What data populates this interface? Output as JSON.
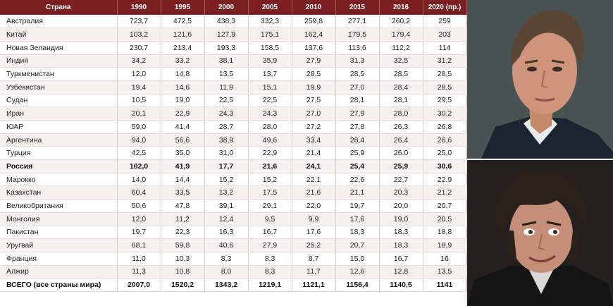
{
  "table": {
    "headers": [
      "Страна",
      "1990",
      "1995",
      "2000",
      "2005",
      "2010",
      "2015",
      "2016",
      "2020 (пр.)"
    ],
    "rows": [
      {
        "cells": [
          "Австралия",
          "723,7",
          "472,5",
          "438,3",
          "332,3",
          "259,8",
          "277,1",
          "260,2",
          "259"
        ]
      },
      {
        "cells": [
          "Китай",
          "103,2",
          "121,6",
          "127,9",
          "175,1",
          "162,4",
          "179,5",
          "179,4",
          "203"
        ]
      },
      {
        "cells": [
          "Новая Зеландия",
          "230,7",
          "213,4",
          "193,3",
          "158,5",
          "137,6",
          "113,6",
          "112,2",
          "114"
        ]
      },
      {
        "cells": [
          "Индия",
          "34,2",
          "33,2",
          "38,1",
          "35,9",
          "27,9",
          "31,3",
          "32,5",
          "31,2"
        ]
      },
      {
        "cells": [
          "Туркменистан",
          "12,0",
          "14,8",
          "13,5",
          "13,7",
          "28,5",
          "28,5",
          "28,5",
          "28,5"
        ]
      },
      {
        "cells": [
          "Узбекистан",
          "19,4",
          "14,6",
          "11,9",
          "15,1",
          "19,9",
          "27,0",
          "28,4",
          "28,5"
        ]
      },
      {
        "cells": [
          "Судан",
          "10,5",
          "19,0",
          "22,5",
          "22,5",
          "27,5",
          "28,1",
          "28,1",
          "29,5"
        ]
      },
      {
        "cells": [
          "Иран",
          "20,1",
          "22,9",
          "24,3",
          "24,3",
          "27,0",
          "27,9",
          "28,0",
          "30,2"
        ]
      },
      {
        "cells": [
          "ЮАР",
          "59,0",
          "41,4",
          "28,7",
          "28,0",
          "27,2",
          "27,8",
          "26,3",
          "26,8"
        ]
      },
      {
        "cells": [
          "Аргентина",
          "94,0",
          "56,6",
          "38,9",
          "49,6",
          "33,4",
          "28,4",
          "26,4",
          "26,6"
        ]
      },
      {
        "cells": [
          "Турция",
          "42,5",
          "35,0",
          "31,0",
          "22,9",
          "21,4",
          "25,9",
          "26,0",
          "25,0"
        ]
      },
      {
        "cells": [
          "Россия",
          "102,0",
          "41,9",
          "17,7",
          "21,6",
          "24,1",
          "25,4",
          "25,9",
          "30,6"
        ],
        "bold": true
      },
      {
        "cells": [
          "Марокко",
          "14,0",
          "14,4",
          "15,2",
          "15,2",
          "22,1",
          "22,6",
          "22,7",
          "22,9"
        ]
      },
      {
        "cells": [
          "Казахстан",
          "60,4",
          "33,5",
          "13,2",
          "17,5",
          "21,6",
          "21,1",
          "20,3",
          "21,2"
        ]
      },
      {
        "cells": [
          "Великобритания",
          "50,6",
          "47,8",
          "39,1",
          "29,1",
          "22,0",
          "19,7",
          "20,0",
          "20,7"
        ]
      },
      {
        "cells": [
          "Монголия",
          "12,0",
          "11,2",
          "12,4",
          "9,5",
          "9,9",
          "17,6",
          "19,0",
          "20,5"
        ]
      },
      {
        "cells": [
          "Пакистан",
          "19,7",
          "22,3",
          "16,3",
          "16,7",
          "17,6",
          "18,3",
          "18,3",
          "18,8"
        ]
      },
      {
        "cells": [
          "Уругвай",
          "68,1",
          "59,8",
          "40,6",
          "27,9",
          "25,2",
          "20,7",
          "18,3",
          "18,9"
        ]
      },
      {
        "cells": [
          "Франция",
          "11,0",
          "10,3",
          "8,3",
          "8,3",
          "8,7",
          "15,0",
          "16,7",
          "16"
        ]
      },
      {
        "cells": [
          "Алжир",
          "11,3",
          "10,8",
          "8,0",
          "8,3",
          "11,7",
          "12,6",
          "12,8",
          "13,5"
        ]
      },
      {
        "cells": [
          "ВСЕГО (все страны мира)",
          "2007,0",
          "1520,2",
          "1343,2",
          "1219,1",
          "1121,1",
          "1156,4",
          "1140,5",
          "1141"
        ],
        "bold": true
      }
    ]
  },
  "colors": {
    "header_bg": "#7b1f23",
    "header_text": "#ffffff",
    "row_alt_bg": "#f6f1f1"
  },
  "photos": [
    {
      "name": "portrait-top"
    },
    {
      "name": "portrait-bottom"
    }
  ]
}
